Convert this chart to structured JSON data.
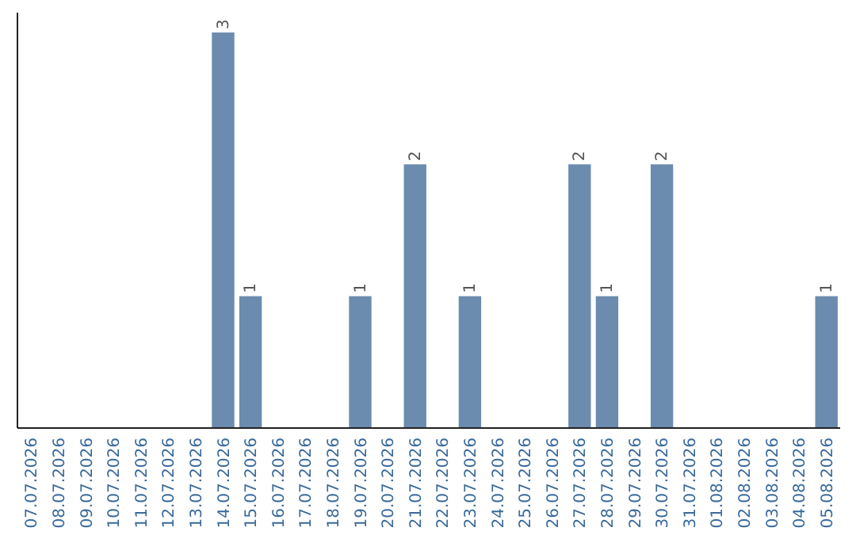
{
  "chart_data": {
    "type": "bar",
    "categories": [
      "07.07.2026",
      "08.07.2026",
      "09.07.2026",
      "10.07.2026",
      "11.07.2026",
      "12.07.2026",
      "13.07.2026",
      "14.07.2026",
      "15.07.2026",
      "16.07.2026",
      "17.07.2026",
      "18.07.2026",
      "19.07.2026",
      "20.07.2026",
      "21.07.2026",
      "22.07.2026",
      "23.07.2026",
      "24.07.2026",
      "25.07.2026",
      "26.07.2026",
      "27.07.2026",
      "28.07.2026",
      "29.07.2026",
      "30.07.2026",
      "31.07.2026",
      "01.08.2026",
      "02.08.2026",
      "03.08.2026",
      "04.08.2026",
      "05.08.2026"
    ],
    "values": [
      0,
      0,
      0,
      0,
      0,
      0,
      0,
      3,
      1,
      0,
      0,
      0,
      1,
      0,
      2,
      0,
      1,
      0,
      0,
      0,
      2,
      1,
      0,
      2,
      0,
      0,
      0,
      0,
      0,
      1
    ],
    "value_labels": [
      null,
      null,
      null,
      null,
      null,
      null,
      null,
      "3",
      "1",
      null,
      null,
      null,
      "1",
      null,
      "2",
      null,
      "1",
      null,
      null,
      null,
      "2",
      "1",
      null,
      "2",
      null,
      null,
      null,
      null,
      null,
      "1"
    ],
    "color": "#6b8cae",
    "ylim": [
      0,
      3.15
    ],
    "tick_labels": "x"
  }
}
